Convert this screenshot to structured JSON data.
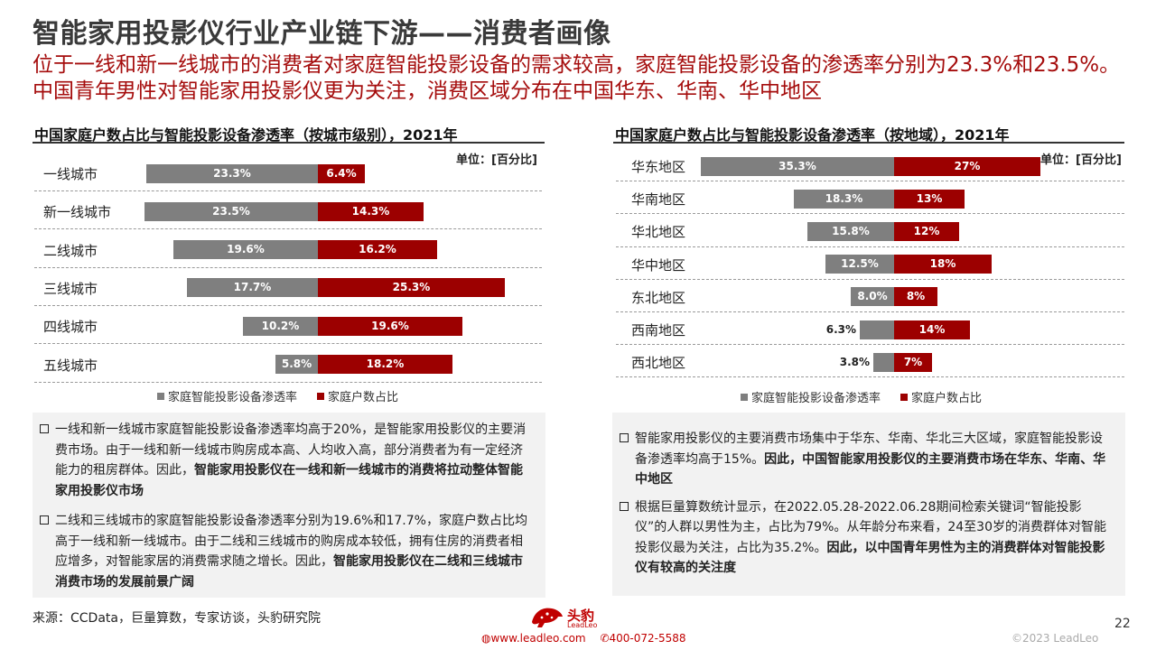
{
  "header": {
    "title": "智能家用投影仪行业产业链下游——消费者画像",
    "subtitle": "位于一线和新一线城市的消费者对家庭智能投影设备的需求较高，家庭智能投影设备的渗透率分别为23.3%和23.5%。中国青年男性对智能家用投影仪更为关注，消费区域分布在中国华东、华南、华中地区"
  },
  "colors": {
    "gray_series": "#7f7f7f",
    "red_series": "#9c0000",
    "accent": "#a50d0d"
  },
  "chart_data": [
    {
      "type": "bar",
      "orientation": "diverging-horizontal",
      "title": "中国家庭户数占比与智能投影设备渗透率（按城市级别），2021年",
      "unit": "单位：[百分比]",
      "categories": [
        "一线城市",
        "新一线城市",
        "二线城市",
        "三线城市",
        "四线城市",
        "五线城市"
      ],
      "series": [
        {
          "name": "家庭智能投影设备渗透率",
          "color": "#7f7f7f",
          "values": [
            23.3,
            23.5,
            19.6,
            17.7,
            10.2,
            5.8
          ],
          "labels": [
            "23.3%",
            "23.5%",
            "19.6%",
            "17.7%",
            "10.2%",
            "5.8%"
          ]
        },
        {
          "name": "家庭户数占比",
          "color": "#9c0000",
          "values": [
            6.4,
            14.3,
            16.2,
            25.3,
            19.6,
            18.2
          ],
          "labels": [
            "6.4%",
            "14.3%",
            "16.2%",
            "25.3%",
            "19.6%",
            "18.2%"
          ]
        }
      ],
      "legend": "bottom"
    },
    {
      "type": "bar",
      "orientation": "diverging-horizontal",
      "title": "中国家庭户数占比与智能投影设备渗透率（按地域），2021年",
      "unit": "单位：[百分比]",
      "categories": [
        "华东地区",
        "华南地区",
        "华北地区",
        "华中地区",
        "东北地区",
        "西南地区",
        "西北地区"
      ],
      "series": [
        {
          "name": "家庭智能投影设备渗透率",
          "color": "#7f7f7f",
          "values": [
            35.3,
            18.3,
            15.8,
            12.5,
            8.0,
            6.3,
            3.8
          ],
          "labels": [
            "35.3%",
            "18.3%",
            "15.8%",
            "12.5%",
            "8.0%",
            "6.3%",
            "3.8%"
          ]
        },
        {
          "name": "家庭户数占比",
          "color": "#9c0000",
          "values": [
            27,
            13,
            12,
            18,
            8,
            14,
            7
          ],
          "labels": [
            "27%",
            "13%",
            "12%",
            "18%",
            "8%",
            "14%",
            "7%"
          ]
        }
      ],
      "legend": "bottom"
    }
  ],
  "notes_left": [
    {
      "text": "一线和新一线城市家庭智能投影设备渗透率均高于20%，是智能家用投影仪的主要消费市场。由于一线和新一线城市购房成本高、人均收入高，部分消费者为有一定经济能力的租房群体。因此，",
      "bold": "智能家用投影仪在一线和新一线城市的消费将拉动整体智能家用投影仪市场"
    },
    {
      "text": "二线和三线城市的家庭智能投影设备渗透率分别为19.6%和17.7%，家庭户数占比均高于一线和新一线城市。由于二线和三线城市的购房成本较低，拥有住房的消费者相应增多，对智能家居的消费需求随之增长。因此，",
      "bold": "智能家用投影仪在二线和三线城市消费市场的发展前景广阔"
    }
  ],
  "notes_right": [
    {
      "text": "智能家用投影仪的主要消费市场集中于华东、华南、华北三大区域，家庭智能投影设备渗透率均高于15%。",
      "bold": "因此，中国智能家用投影仪的主要消费市场在华东、华南、华中地区"
    },
    {
      "text": "根据巨量算数统计显示，在2022.05.28-2022.06.28期间检索关键词“智能投影仪”的人群以男性为主，占比为79%。从年龄分布来看，24至30岁的消费群体对智能投影仪最为关注，占比为35.2%。",
      "bold": "因此，以中国青年男性为主的消费群体对智能投影仪有较高的关注度"
    }
  ],
  "footer": {
    "source": "来源：CCData，巨量算数，专家访谈，头豹研究院",
    "page_number": "22",
    "logo_text": "头豹",
    "logo_sub": "LeadLeo",
    "website": "www.leadleo.com",
    "phone": "400-072-5588",
    "copyright": "©2023 LeadLeo"
  }
}
